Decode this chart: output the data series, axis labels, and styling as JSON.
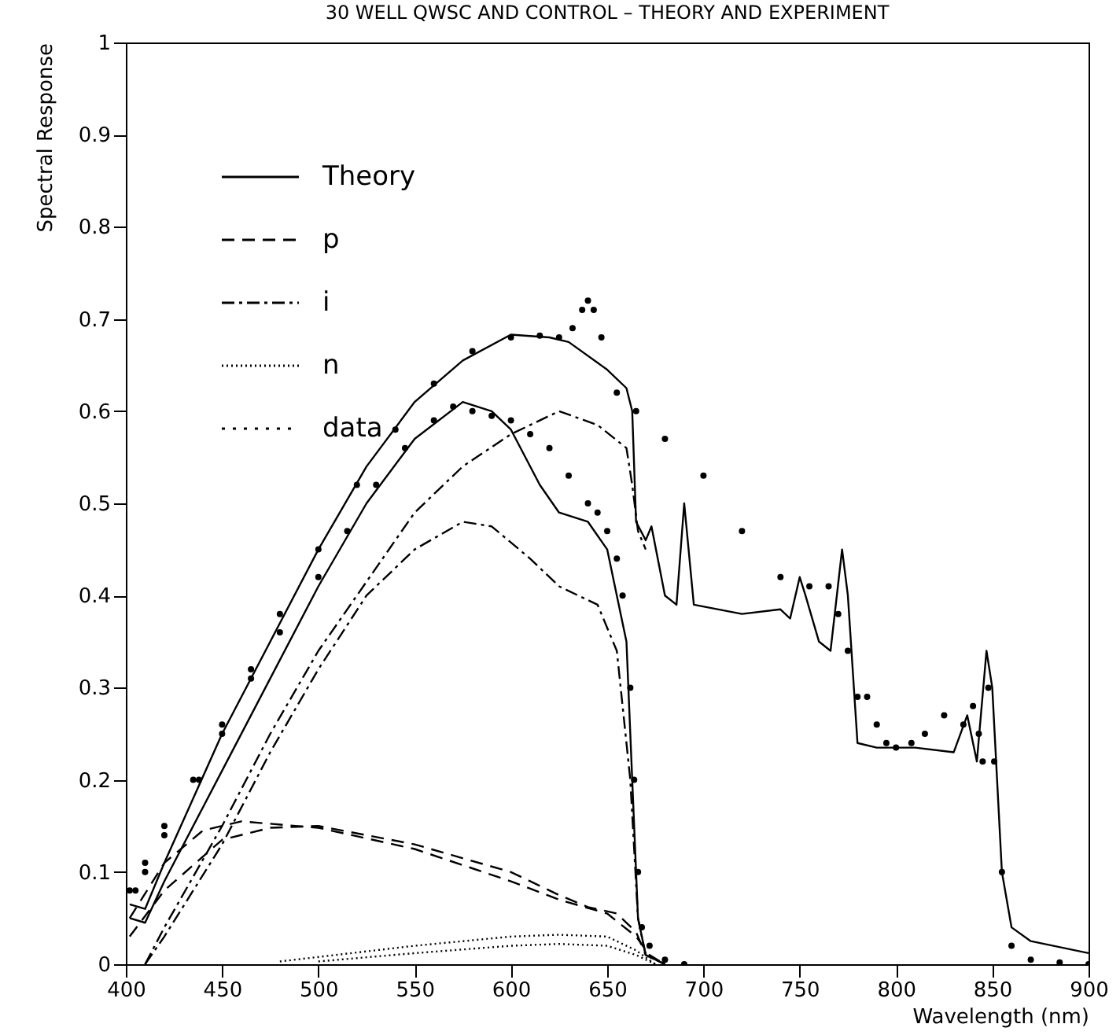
{
  "chart_data": {
    "type": "line",
    "title": "30 WELL QWSC AND CONTROL – THEORY AND EXPERIMENT",
    "xlabel": "Wavelength (nm)",
    "ylabel": "Spectral Response",
    "xlim": [
      400,
      900
    ],
    "xticks": [
      400,
      450,
      500,
      550,
      600,
      650,
      700,
      750,
      800,
      850,
      900
    ],
    "ylim": [
      0,
      1
    ],
    "yticks": [
      0,
      0.1,
      0.2,
      0.3,
      0.4,
      0.5,
      0.6,
      0.7,
      0.8,
      0.9,
      1
    ],
    "grid": false,
    "legend": "top left",
    "series": [
      {
        "name": "Theory",
        "type": "line",
        "line_style": "solid",
        "color": "#000000",
        "x": [
          402,
          410,
          420,
          450,
          500,
          525,
          550,
          575,
          600,
          620,
          630,
          650,
          660,
          663,
          665,
          670,
          673,
          680,
          686,
          690,
          695,
          720,
          740,
          745,
          750,
          753,
          760,
          766,
          772,
          775,
          780,
          790,
          810,
          830,
          837,
          840,
          842,
          847,
          850,
          855,
          860,
          870,
          900
        ],
        "values": [
          0.065,
          0.06,
          0.11,
          0.25,
          0.45,
          0.54,
          0.61,
          0.655,
          0.683,
          0.68,
          0.675,
          0.645,
          0.625,
          0.6,
          0.48,
          0.46,
          0.475,
          0.4,
          0.39,
          0.5,
          0.39,
          0.38,
          0.385,
          0.375,
          0.42,
          0.4,
          0.35,
          0.34,
          0.45,
          0.4,
          0.24,
          0.235,
          0.235,
          0.23,
          0.27,
          0.24,
          0.22,
          0.34,
          0.3,
          0.1,
          0.04,
          0.025,
          0.012
        ]
      },
      {
        "name": "p",
        "type": "line",
        "line_style": "dashed",
        "color": "#000000",
        "x": [
          402,
          420,
          440,
          460,
          500,
          550,
          600,
          625,
          650,
          665,
          672,
          680
        ],
        "values": [
          0.05,
          0.11,
          0.145,
          0.155,
          0.148,
          0.125,
          0.09,
          0.07,
          0.055,
          0.03,
          0.01,
          0
        ]
      },
      {
        "name": "i",
        "type": "line",
        "line_style": "dashdot",
        "color": "#000000",
        "x": [
          410,
          420,
          450,
          475,
          500,
          550,
          575,
          600,
          625,
          645,
          660,
          663,
          666,
          670
        ],
        "values": [
          0,
          0.04,
          0.15,
          0.25,
          0.34,
          0.49,
          0.54,
          0.575,
          0.6,
          0.585,
          0.56,
          0.52,
          0.47,
          0.45
        ]
      },
      {
        "name": "n",
        "type": "line",
        "line_style": "dotted",
        "color": "#000000",
        "x": [
          480,
          550,
          600,
          625,
          650,
          665,
          675
        ],
        "values": [
          0.003,
          0.02,
          0.03,
          0.032,
          0.03,
          0.015,
          0
        ]
      },
      {
        "name": "data",
        "type": "scatter",
        "marker": "circle",
        "color": "#000000",
        "x": [
          402,
          410,
          420,
          435,
          450,
          465,
          480,
          500,
          520,
          540,
          560,
          580,
          600,
          615,
          625,
          632,
          637,
          640,
          643,
          647,
          655,
          665,
          680,
          700,
          720,
          740,
          755,
          765,
          770,
          775,
          780,
          785,
          790,
          795,
          800,
          808,
          815,
          825,
          835,
          840,
          843,
          845,
          848,
          851,
          855,
          860,
          870,
          885,
          900
        ],
        "values": [
          0.08,
          0.11,
          0.15,
          0.2,
          0.26,
          0.32,
          0.38,
          0.45,
          0.52,
          0.58,
          0.63,
          0.665,
          0.68,
          0.682,
          0.68,
          0.69,
          0.71,
          0.72,
          0.71,
          0.68,
          0.62,
          0.6,
          0.57,
          0.53,
          0.47,
          0.42,
          0.41,
          0.41,
          0.38,
          0.34,
          0.29,
          0.29,
          0.26,
          0.24,
          0.235,
          0.24,
          0.25,
          0.27,
          0.26,
          0.28,
          0.25,
          0.22,
          0.3,
          0.22,
          0.1,
          0.02,
          0.005,
          0.002,
          0
        ]
      },
      {
        "type": "line",
        "line_style": "solid",
        "color": "#000000",
        "x": [
          402,
          410,
          420,
          450,
          475,
          500,
          525,
          550,
          575,
          590,
          600,
          615,
          625,
          640,
          650,
          660,
          663,
          666,
          670,
          680
        ],
        "values": [
          0.05,
          0.045,
          0.09,
          0.21,
          0.31,
          0.41,
          0.5,
          0.57,
          0.61,
          0.6,
          0.58,
          0.52,
          0.49,
          0.48,
          0.45,
          0.35,
          0.2,
          0.05,
          0.01,
          0
        ]
      },
      {
        "type": "line",
        "line_style": "dashed",
        "color": "#000000",
        "x": [
          402,
          420,
          450,
          475,
          500,
          550,
          600,
          625,
          640,
          655,
          665,
          670,
          680
        ],
        "values": [
          0.03,
          0.08,
          0.135,
          0.148,
          0.15,
          0.13,
          0.1,
          0.075,
          0.062,
          0.055,
          0.035,
          0.01,
          0
        ]
      },
      {
        "type": "line",
        "line_style": "dashdot",
        "color": "#000000",
        "x": [
          410,
          420,
          450,
          475,
          500,
          525,
          550,
          575,
          590,
          610,
          625,
          645,
          655,
          662,
          666,
          670,
          680
        ],
        "values": [
          0,
          0.03,
          0.13,
          0.23,
          0.32,
          0.4,
          0.45,
          0.48,
          0.475,
          0.44,
          0.41,
          0.39,
          0.34,
          0.2,
          0.05,
          0.01,
          0
        ]
      },
      {
        "type": "line",
        "line_style": "dotted",
        "color": "#000000",
        "x": [
          500,
          550,
          600,
          625,
          650,
          665,
          675
        ],
        "values": [
          0.003,
          0.012,
          0.02,
          0.022,
          0.02,
          0.01,
          0
        ]
      },
      {
        "type": "scatter",
        "marker": "circle",
        "color": "#000000",
        "x": [
          405,
          410,
          420,
          438,
          450,
          465,
          480,
          500,
          515,
          530,
          545,
          560,
          570,
          580,
          590,
          600,
          610,
          620,
          630,
          640,
          645,
          650,
          655,
          658,
          662,
          664,
          666,
          668,
          672,
          680,
          690
        ],
        "values": [
          0.08,
          0.1,
          0.14,
          0.2,
          0.25,
          0.31,
          0.36,
          0.42,
          0.47,
          0.52,
          0.56,
          0.59,
          0.605,
          0.6,
          0.595,
          0.59,
          0.575,
          0.56,
          0.53,
          0.5,
          0.49,
          0.47,
          0.44,
          0.4,
          0.3,
          0.2,
          0.1,
          0.04,
          0.02,
          0.005,
          0
        ]
      }
    ]
  }
}
